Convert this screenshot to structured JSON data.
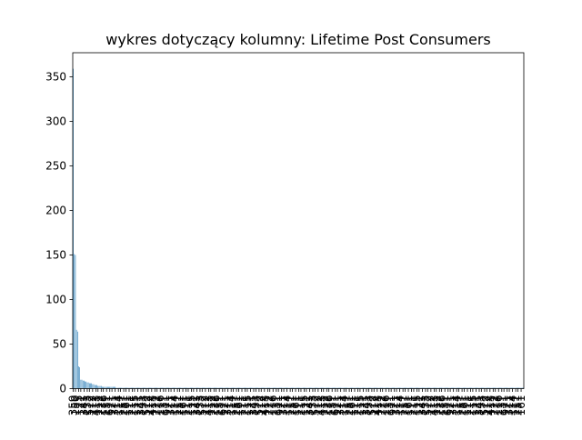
{
  "chart_data": {
    "type": "bar",
    "title": "wykres dotyczący kolumny: Lifetime Post Consumers",
    "xlabel": "",
    "ylabel": "",
    "ylim": [
      0,
      377
    ],
    "yticks": [
      0,
      50,
      100,
      150,
      200,
      250,
      300,
      350
    ],
    "grid": false,
    "bar_color": "#1f77b4",
    "n_categories": 420,
    "values": [
      359,
      151,
      150,
      66,
      64,
      25,
      24,
      10,
      10,
      9,
      9,
      8,
      8,
      7,
      7,
      6,
      6,
      6,
      5,
      5,
      4,
      4,
      4,
      3,
      3,
      3,
      3,
      2,
      2,
      2,
      2,
      2,
      2,
      2,
      2,
      2,
      2,
      2,
      2,
      2
    ],
    "default_value": 1,
    "note_labels": [
      "1",
      "1",
      "2",
      "3",
      "2",
      "1",
      "5",
      "4",
      "3",
      "1",
      "1",
      "2",
      "1",
      "1",
      "3",
      "1",
      "4",
      "1",
      "1",
      "1",
      "1",
      "5",
      "2",
      "1",
      "1",
      "1",
      "2",
      "1",
      "1",
      "1",
      "1",
      "1",
      "1",
      "3",
      "1",
      "1",
      "1",
      "5",
      "3"
    ]
  }
}
